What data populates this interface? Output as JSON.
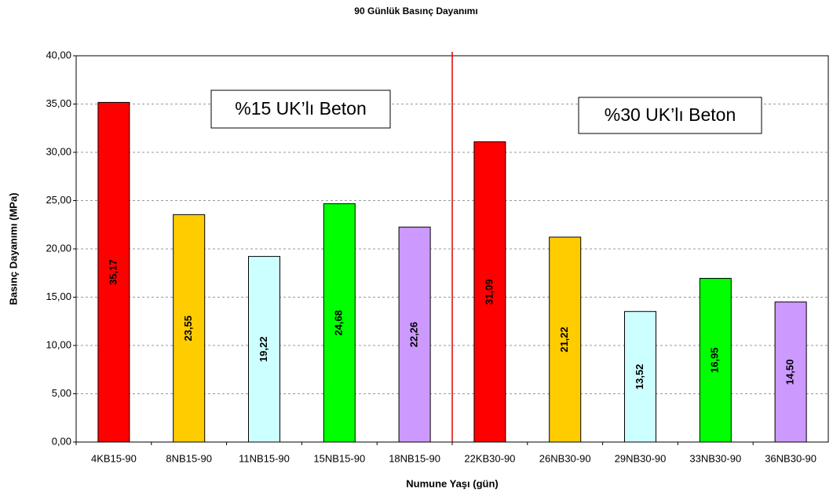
{
  "chart_data": {
    "type": "bar",
    "title": "90 Günlük Basınç Dayanımı",
    "x_label": "Numune Yaşı (gün)",
    "y_label": "Basınç Dayanımı (MPa)",
    "categories": [
      "4KB15-90",
      "8NB15-90",
      "11NB15-90",
      "15NB15-90",
      "18NB15-90",
      "22KB30-90",
      "26NB30-90",
      "29NB30-90",
      "33NB30-90",
      "36NB30-90"
    ],
    "values": [
      35.17,
      23.55,
      19.22,
      24.68,
      22.26,
      31.09,
      21.22,
      13.52,
      16.95,
      14.5
    ],
    "value_labels": [
      "35,17",
      "23,55",
      "19,22",
      "24,68",
      "22,26",
      "31,09",
      "21,22",
      "13,52",
      "16,95",
      "14,50"
    ],
    "colors": [
      "#ff0000",
      "#ffcc00",
      "#ccffff",
      "#00ff00",
      "#cc99ff",
      "#ff0000",
      "#ffcc00",
      "#ccffff",
      "#00ff00",
      "#cc99ff"
    ],
    "ylim": [
      0,
      40
    ],
    "yticks": [
      {
        "value": 0,
        "label": "0,00"
      },
      {
        "value": 5,
        "label": "5,00"
      },
      {
        "value": 10,
        "label": "10,00"
      },
      {
        "value": 15,
        "label": "15,00"
      },
      {
        "value": 20,
        "label": "20,00"
      },
      {
        "value": 25,
        "label": "25,00"
      },
      {
        "value": 30,
        "label": "30,00"
      },
      {
        "value": 35,
        "label": "35,00"
      },
      {
        "value": 40,
        "label": "40,00"
      }
    ],
    "grid": true,
    "annotations": [
      "%15 UK’lı Beton",
      "%30 UK’lı Beton"
    ]
  }
}
